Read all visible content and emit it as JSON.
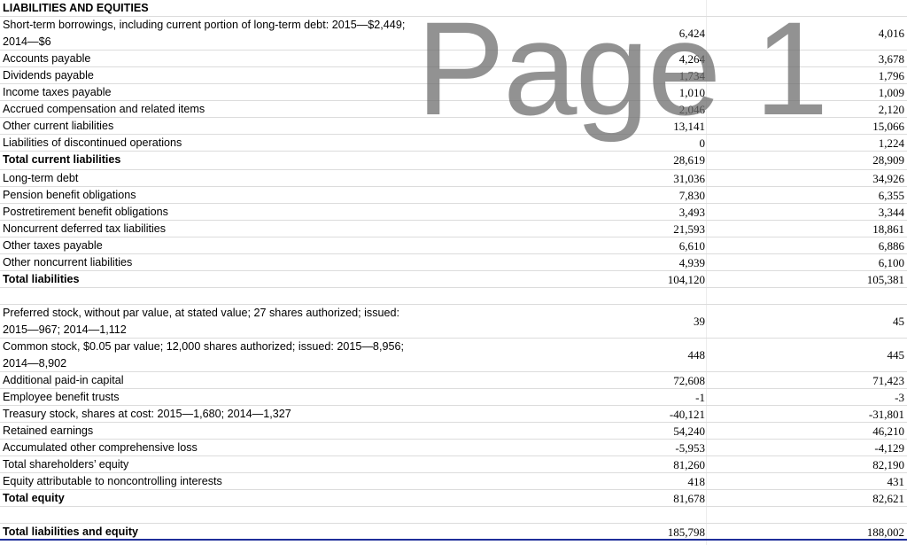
{
  "watermark": "Page 1",
  "rows": [
    {
      "label": "LIABILITIES AND EQUITIES",
      "v2015": "",
      "v2014": "",
      "bold": true
    },
    {
      "label": "Short-term borrowings, including current portion of long-term debt: 2015—$2,449;\n2014—$6",
      "v2015": "6,424",
      "v2014": "4,016"
    },
    {
      "label": "Accounts payable",
      "v2015": "4,264",
      "v2014": "3,678"
    },
    {
      "label": "Dividends payable",
      "v2015": "1,734",
      "v2014": "1,796"
    },
    {
      "label": "Income taxes payable",
      "v2015": "1,010",
      "v2014": "1,009"
    },
    {
      "label": "Accrued compensation and related items",
      "v2015": "2,046",
      "v2014": "2,120"
    },
    {
      "label": "Other current liabilities",
      "v2015": "13,141",
      "v2014": "15,066"
    },
    {
      "label": "Liabilities of discontinued operations",
      "v2015": "0",
      "v2014": "1,224"
    },
    {
      "label": "Total current liabilities",
      "v2015": "28,619",
      "v2014": "28,909",
      "bold": true
    },
    {
      "label": "Long-term debt",
      "v2015": "31,036",
      "v2014": "34,926"
    },
    {
      "label": "Pension benefit obligations",
      "v2015": "7,830",
      "v2014": "6,355"
    },
    {
      "label": "Postretirement benefit obligations",
      "v2015": "3,493",
      "v2014": "3,344"
    },
    {
      "label": "Noncurrent deferred tax liabilities",
      "v2015": "21,593",
      "v2014": "18,861"
    },
    {
      "label": "Other taxes payable",
      "v2015": "6,610",
      "v2014": "6,886"
    },
    {
      "label": "Other noncurrent liabilities",
      "v2015": "4,939",
      "v2014": "6,100"
    },
    {
      "label": "Total liabilities",
      "v2015": "104,120",
      "v2014": "105,381",
      "bold": true
    },
    {
      "label": "",
      "v2015": "",
      "v2014": ""
    },
    {
      "label": "Preferred stock, without par value, at stated value; 27 shares authorized; issued:\n2015—967; 2014—1,112",
      "v2015": "39",
      "v2014": "45"
    },
    {
      "label": "Common stock, $0.05 par value; 12,000 shares authorized; issued: 2015—8,956;\n2014—8,902",
      "v2015": "448",
      "v2014": "445"
    },
    {
      "label": "Additional paid-in capital",
      "v2015": "72,608",
      "v2014": "71,423"
    },
    {
      "label": "Employee benefit trusts",
      "v2015": "-1",
      "v2014": "-3"
    },
    {
      "label": "Treasury stock, shares at cost: 2015—1,680; 2014—1,327",
      "v2015": "-40,121",
      "v2014": "-31,801"
    },
    {
      "label": "Retained earnings",
      "v2015": "54,240",
      "v2014": "46,210"
    },
    {
      "label": "Accumulated other comprehensive loss",
      "v2015": "-5,953",
      "v2014": "-4,129"
    },
    {
      "label": "Total shareholders’ equity",
      "v2015": "81,260",
      "v2014": "82,190"
    },
    {
      "label": "Equity attributable to noncontrolling interests",
      "v2015": "418",
      "v2014": "431"
    },
    {
      "label": "Total equity",
      "v2015": "81,678",
      "v2014": "82,621",
      "bold": true
    },
    {
      "label": "",
      "v2015": "",
      "v2014": ""
    },
    {
      "label": "Total liabilities and equity",
      "v2015": "185,798",
      "v2014": "188,002",
      "bold": true
    }
  ]
}
